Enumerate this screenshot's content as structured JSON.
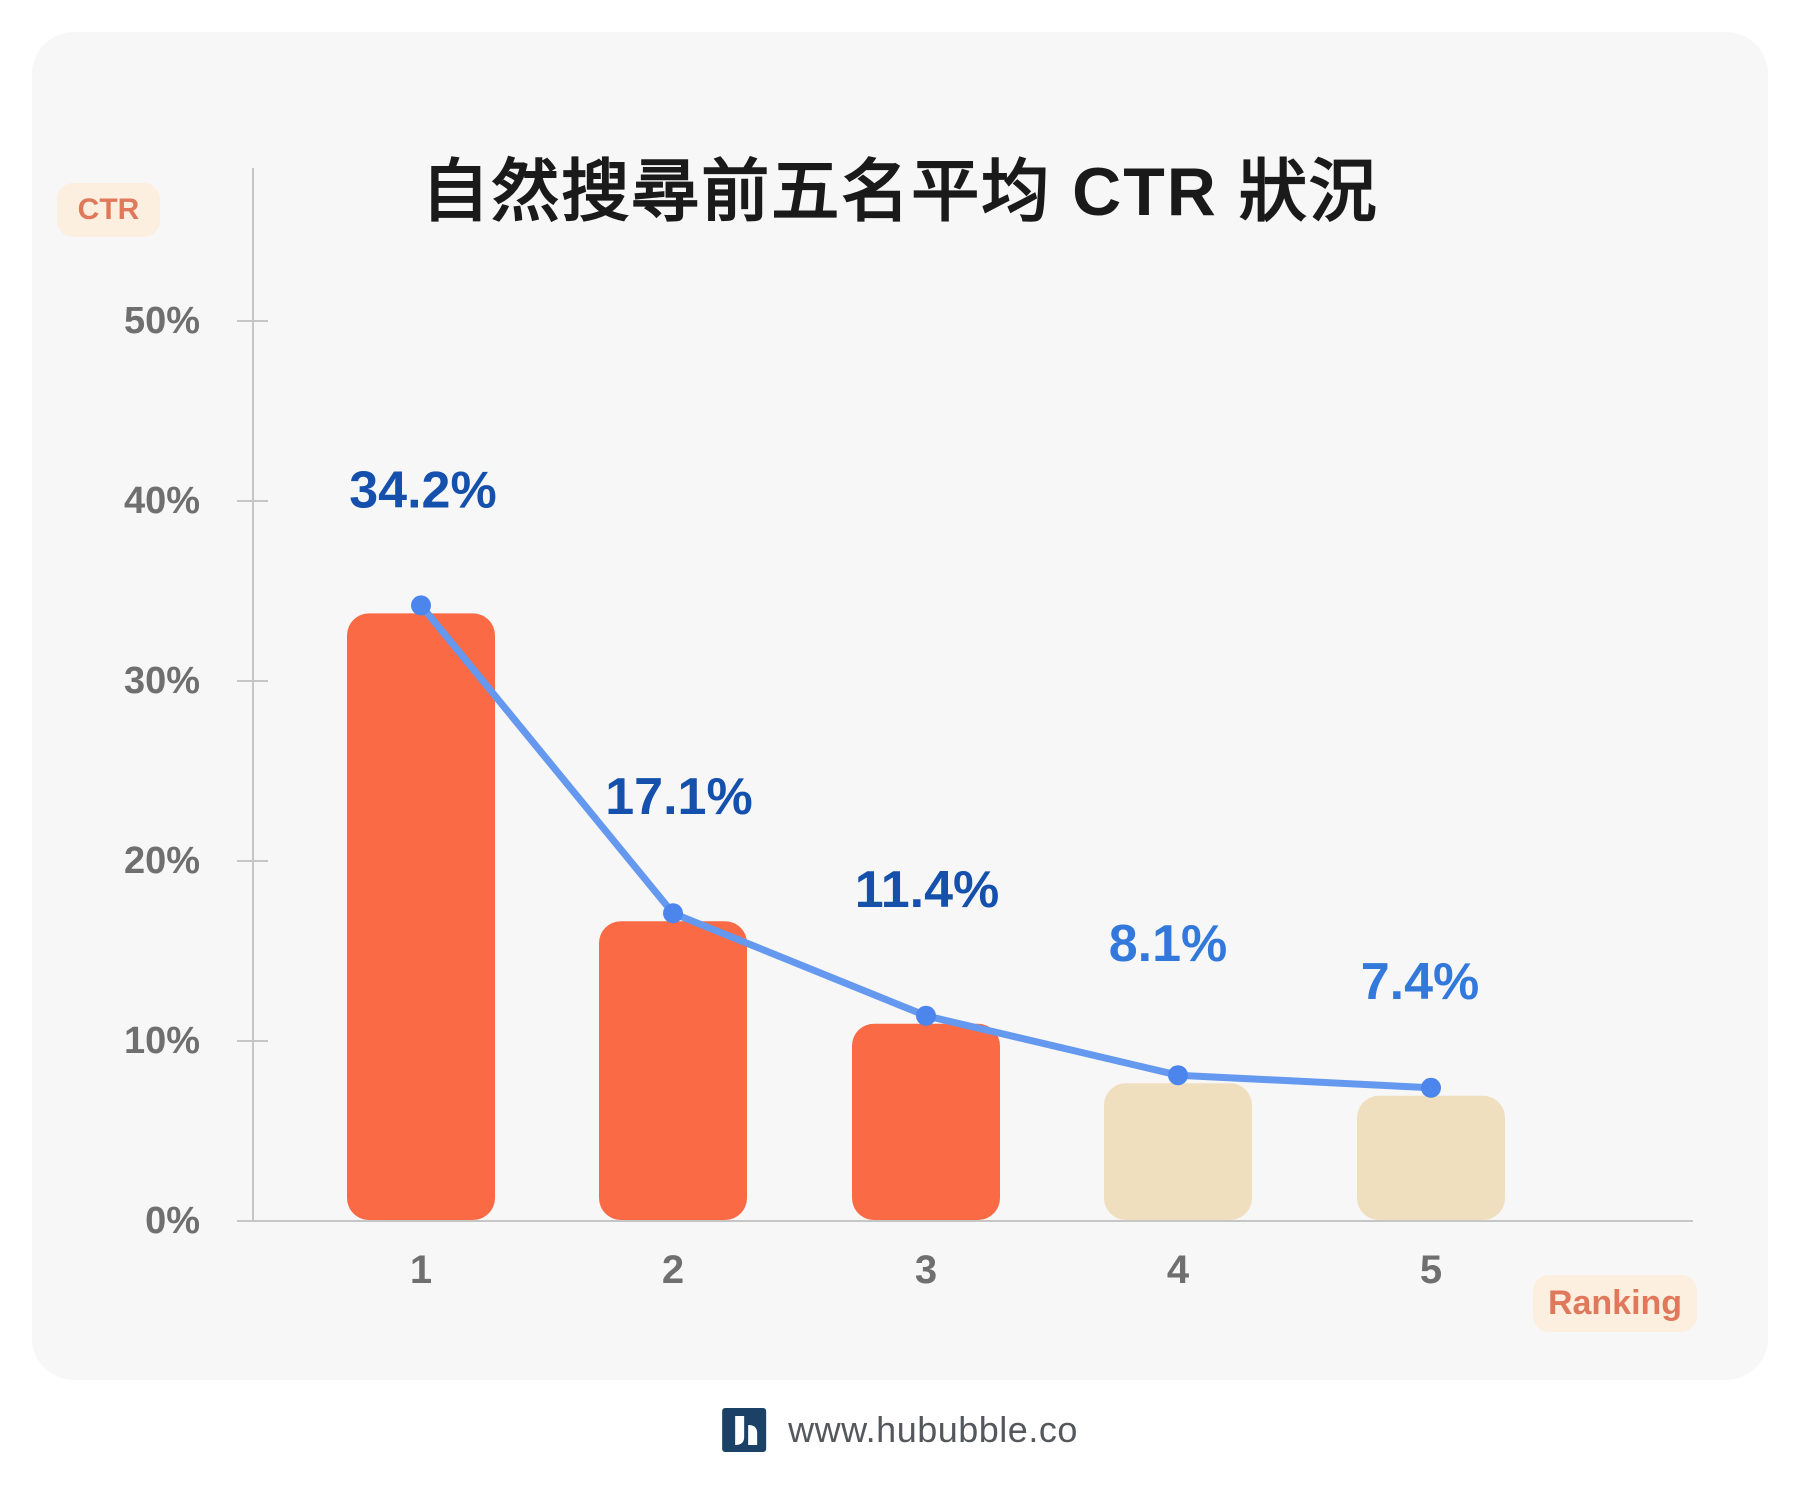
{
  "page": {
    "background": "#FFFFFF",
    "card_background": "#F7F7F8"
  },
  "title": "自然搜尋前五名平均 CTR 狀況",
  "y_axis_badge": "CTR",
  "x_axis_badge": "Ranking",
  "footer": {
    "logo": "hububble-logo",
    "url": "www.hububble.co"
  },
  "chart_data": {
    "type": "bar",
    "subtype": "bar-with-line-overlay",
    "title": "自然搜尋前五名平均 CTR 狀況",
    "xlabel": "Ranking",
    "ylabel": "CTR",
    "categories": [
      "1",
      "2",
      "3",
      "4",
      "5"
    ],
    "values": [
      34.2,
      17.1,
      11.4,
      8.1,
      7.4
    ],
    "value_labels": [
      "34.2%",
      "17.1%",
      "11.4%",
      "8.1%",
      "7.4%"
    ],
    "value_label_colors": [
      "#1450AC",
      "#1450AC",
      "#1450AC",
      "#3379DB",
      "#3379DB"
    ],
    "bar_colors": [
      "#F96A45",
      "#F96A45",
      "#F96A45",
      "#F0DFBF",
      "#F0DFBF"
    ],
    "line_color": "#6598EF",
    "dot_color": "#4C86EC",
    "axis_color": "#C6C6C6",
    "tick_text_color": "#6F6F6F",
    "ylim": [
      0,
      50
    ],
    "yticks": [
      "0%",
      "10%",
      "20%",
      "30%",
      "40%",
      "50%"
    ],
    "ytick_values": [
      0,
      10,
      20,
      30,
      40,
      50
    ],
    "grid": false,
    "legend": "none"
  }
}
